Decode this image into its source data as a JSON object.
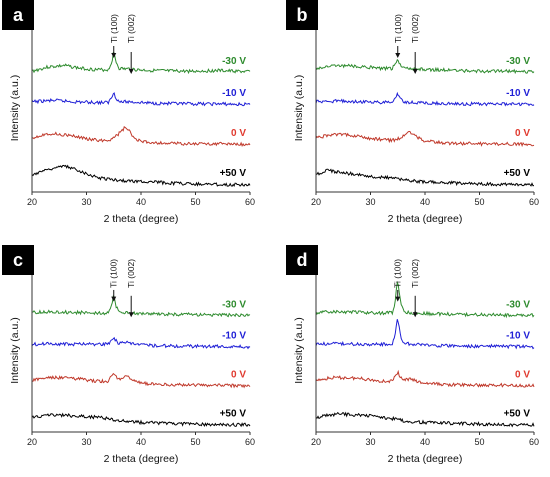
{
  "chart_data": [
    {
      "type": "line",
      "panel_label": "a",
      "xlabel": "2 theta (degree)",
      "ylabel": "Intensity (a.u.)",
      "xlim": [
        20,
        60
      ],
      "xticks": [
        20,
        30,
        40,
        50,
        60
      ],
      "annotations": [
        {
          "text": "Ti (100)",
          "x": 35
        },
        {
          "text": "Ti (002)",
          "x": 38.2
        }
      ],
      "series": [
        {
          "name": "-30 V",
          "color": "#2e8b2e",
          "label_color": "#2e8b2e",
          "x": [
            20,
            23,
            26,
            29,
            32,
            34,
            34.6,
            35,
            35.4,
            36,
            37.5,
            38.2,
            39,
            42,
            46,
            50,
            54,
            57,
            60
          ],
          "y": [
            0.2,
            0.5,
            0.6,
            0.4,
            0.3,
            0.3,
            0.8,
            1.6,
            0.9,
            0.4,
            0.35,
            0.4,
            0.3,
            0.25,
            0.2,
            0.2,
            0.25,
            0.2,
            0.15
          ]
        },
        {
          "name": "-10 V",
          "color": "#1f1fd6",
          "label_color": "#1f1fd6",
          "x": [
            20,
            24,
            28,
            32,
            34,
            34.6,
            35,
            35.4,
            36,
            38,
            42,
            48,
            54,
            60
          ],
          "y": [
            0.3,
            0.4,
            0.3,
            0.25,
            0.25,
            0.6,
            1.0,
            0.6,
            0.3,
            0.3,
            0.2,
            0.15,
            0.15,
            0.1
          ]
        },
        {
          "name": "0 V",
          "color": "#c0392b",
          "label_color": "#e03a2f",
          "x": [
            20,
            23,
            26,
            29,
            32,
            34,
            35,
            36,
            37,
            37.8,
            38.6,
            40,
            44,
            50,
            55,
            60
          ],
          "y": [
            0.6,
            0.9,
            0.8,
            0.6,
            0.4,
            0.4,
            0.6,
            0.9,
            1.3,
            1.1,
            0.6,
            0.3,
            0.2,
            0.15,
            0.15,
            0.1
          ]
        },
        {
          "name": "+50 V",
          "color": "#000000",
          "label_color": "#000000",
          "x": [
            20,
            22,
            24,
            26,
            28,
            30,
            32,
            34,
            36,
            38,
            42,
            46,
            50,
            55,
            60
          ],
          "y": [
            0.8,
            1.1,
            1.3,
            1.4,
            1.2,
            0.9,
            0.6,
            0.5,
            0.4,
            0.35,
            0.3,
            0.2,
            0.15,
            0.1,
            0.1
          ]
        }
      ]
    },
    {
      "type": "line",
      "panel_label": "b",
      "xlabel": "2 theta (degree)",
      "ylabel": "Intensity (a.u.)",
      "xlim": [
        20,
        60
      ],
      "xticks": [
        20,
        30,
        40,
        50,
        60
      ],
      "annotations": [
        {
          "text": "Ti (100)",
          "x": 35
        },
        {
          "text": "Ti (002)",
          "x": 38.2
        }
      ],
      "series": [
        {
          "name": "-30 V",
          "color": "#2e8b2e",
          "label_color": "#2e8b2e",
          "x": [
            20,
            23,
            26,
            29,
            32,
            34,
            34.6,
            35,
            35.4,
            36,
            38,
            42,
            46,
            50,
            55,
            60
          ],
          "y": [
            0.4,
            0.6,
            0.6,
            0.5,
            0.4,
            0.4,
            0.8,
            1.1,
            0.7,
            0.4,
            0.35,
            0.3,
            0.25,
            0.2,
            0.2,
            0.15
          ]
        },
        {
          "name": "-10 V",
          "color": "#1f1fd6",
          "label_color": "#1f1fd6",
          "x": [
            20,
            24,
            28,
            32,
            34,
            34.6,
            35,
            35.4,
            36,
            38,
            42,
            48,
            54,
            60
          ],
          "y": [
            0.3,
            0.35,
            0.3,
            0.25,
            0.25,
            0.6,
            0.9,
            0.6,
            0.3,
            0.25,
            0.2,
            0.15,
            0.15,
            0.1
          ]
        },
        {
          "name": "0 V",
          "color": "#c0392b",
          "label_color": "#e03a2f",
          "x": [
            20,
            23,
            26,
            29,
            32,
            34,
            35,
            36,
            37,
            37.8,
            38.6,
            40,
            44,
            50,
            55,
            60
          ],
          "y": [
            0.6,
            0.8,
            0.8,
            0.6,
            0.45,
            0.4,
            0.5,
            0.7,
            1.0,
            0.9,
            0.6,
            0.35,
            0.2,
            0.15,
            0.15,
            0.1
          ]
        },
        {
          "name": "+50 V",
          "color": "#000000",
          "label_color": "#000000",
          "x": [
            20,
            22,
            24,
            26,
            28,
            30,
            32,
            34,
            36,
            38,
            42,
            46,
            50,
            55,
            60
          ],
          "y": [
            0.8,
            1.1,
            1.0,
            0.9,
            0.8,
            0.7,
            0.6,
            0.6,
            0.45,
            0.35,
            0.25,
            0.2,
            0.15,
            0.1,
            0.1
          ]
        }
      ]
    },
    {
      "type": "line",
      "panel_label": "c",
      "xlabel": "2 theta (degree)",
      "ylabel": "Intensity (a.u.)",
      "xlim": [
        20,
        60
      ],
      "xticks": [
        20,
        30,
        40,
        50,
        60
      ],
      "annotations": [
        {
          "text": "Ti (100)",
          "x": 35
        },
        {
          "text": "Ti (002)",
          "x": 38.2
        }
      ],
      "series": [
        {
          "name": "-30 V",
          "color": "#2e8b2e",
          "label_color": "#2e8b2e",
          "x": [
            20,
            24,
            28,
            32,
            34,
            34.6,
            35,
            35.4,
            36,
            38,
            42,
            46,
            50,
            55,
            60
          ],
          "y": [
            0.35,
            0.4,
            0.35,
            0.3,
            0.3,
            0.9,
            1.6,
            0.8,
            0.35,
            0.3,
            0.25,
            0.2,
            0.2,
            0.15,
            0.15
          ]
        },
        {
          "name": "-10 V",
          "color": "#1f1fd6",
          "label_color": "#1f1fd6",
          "x": [
            20,
            24,
            28,
            32,
            34,
            34.6,
            35,
            35.4,
            36,
            37,
            38,
            42,
            48,
            54,
            60
          ],
          "y": [
            0.3,
            0.35,
            0.3,
            0.3,
            0.3,
            0.6,
            0.8,
            0.55,
            0.35,
            0.5,
            0.35,
            0.2,
            0.15,
            0.15,
            0.1
          ]
        },
        {
          "name": "0 V",
          "color": "#c0392b",
          "label_color": "#e03a2f",
          "x": [
            20,
            23,
            26,
            29,
            32,
            34,
            34.6,
            35,
            35.4,
            36,
            37,
            37.8,
            38.6,
            40,
            44,
            50,
            55,
            60
          ],
          "y": [
            0.5,
            0.7,
            0.7,
            0.6,
            0.45,
            0.45,
            0.8,
            1.0,
            0.8,
            0.6,
            0.8,
            0.7,
            0.5,
            0.3,
            0.2,
            0.15,
            0.15,
            0.1
          ]
        },
        {
          "name": "+50 V",
          "color": "#000000",
          "label_color": "#000000",
          "x": [
            20,
            22,
            24,
            26,
            28,
            30,
            32,
            34,
            36,
            38,
            42,
            46,
            50,
            55,
            60
          ],
          "y": [
            0.6,
            0.8,
            0.8,
            0.8,
            0.75,
            0.7,
            0.65,
            0.55,
            0.4,
            0.3,
            0.25,
            0.2,
            0.15,
            0.1,
            0.1
          ]
        }
      ]
    },
    {
      "type": "line",
      "panel_label": "d",
      "xlabel": "2 theta (degree)",
      "ylabel": "Intensity (a.u.)",
      "xlim": [
        20,
        60
      ],
      "xticks": [
        20,
        30,
        40,
        50,
        60
      ],
      "annotations": [
        {
          "text": "Ti (100)",
          "x": 35
        },
        {
          "text": "Ti (002)",
          "x": 38.2
        }
      ],
      "series": [
        {
          "name": "-30 V",
          "color": "#2e8b2e",
          "label_color": "#2e8b2e",
          "x": [
            20,
            24,
            28,
            32,
            34,
            34.5,
            34.8,
            35,
            35.2,
            35.6,
            36.2,
            38,
            42,
            46,
            50,
            55,
            60
          ],
          "y": [
            0.35,
            0.4,
            0.35,
            0.3,
            0.35,
            1.0,
            2.4,
            2.7,
            2.1,
            0.9,
            0.4,
            0.3,
            0.25,
            0.2,
            0.2,
            0.15,
            0.15
          ]
        },
        {
          "name": "-10 V",
          "color": "#1f1fd6",
          "label_color": "#1f1fd6",
          "x": [
            20,
            24,
            28,
            32,
            34,
            34.5,
            34.8,
            35,
            35.2,
            35.6,
            36.2,
            38,
            42,
            48,
            54,
            60
          ],
          "y": [
            0.3,
            0.35,
            0.3,
            0.3,
            0.3,
            0.9,
            1.9,
            2.2,
            1.7,
            0.8,
            0.35,
            0.3,
            0.2,
            0.15,
            0.15,
            0.1
          ]
        },
        {
          "name": "0 V",
          "color": "#c0392b",
          "label_color": "#e03a2f",
          "x": [
            20,
            23,
            26,
            29,
            32,
            34,
            34.6,
            35,
            35.4,
            36,
            37,
            37.8,
            38.6,
            40,
            44,
            50,
            55,
            60
          ],
          "y": [
            0.5,
            0.7,
            0.7,
            0.6,
            0.45,
            0.45,
            0.8,
            1.1,
            0.8,
            0.5,
            0.6,
            0.55,
            0.4,
            0.3,
            0.2,
            0.15,
            0.15,
            0.1
          ]
        },
        {
          "name": "+50 V",
          "color": "#000000",
          "label_color": "#000000",
          "x": [
            20,
            22,
            24,
            26,
            28,
            30,
            32,
            34,
            36,
            38,
            42,
            46,
            50,
            55,
            60
          ],
          "y": [
            0.6,
            0.8,
            0.9,
            0.85,
            0.8,
            0.75,
            0.65,
            0.55,
            0.4,
            0.3,
            0.25,
            0.2,
            0.15,
            0.1,
            0.1
          ]
        }
      ]
    }
  ]
}
